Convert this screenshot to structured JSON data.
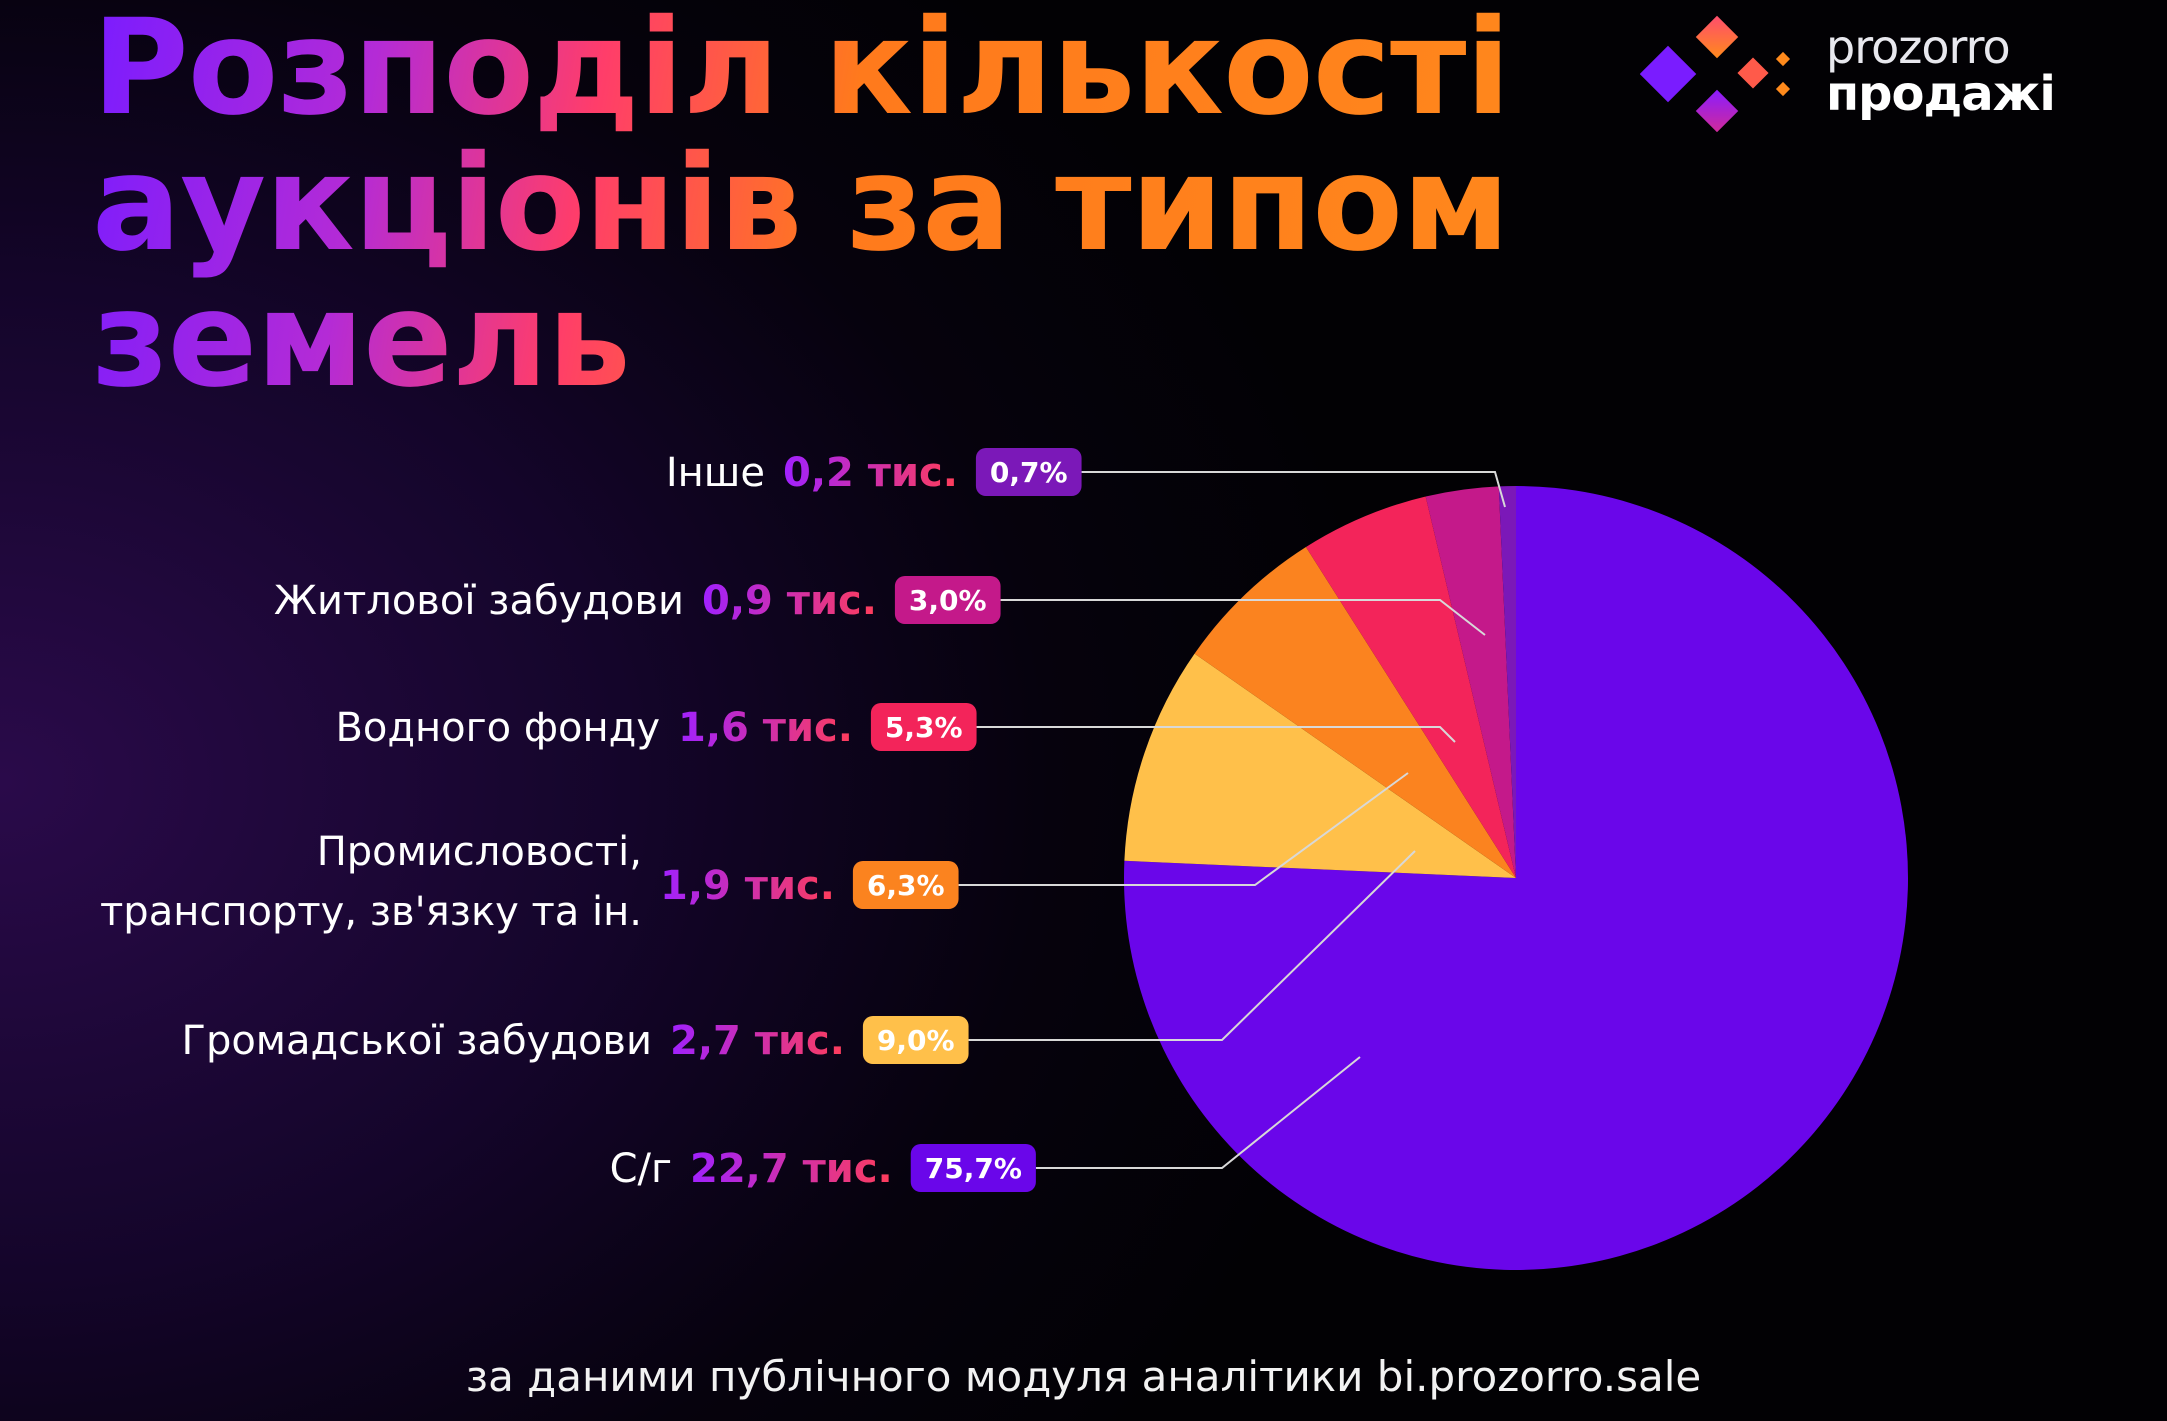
{
  "title_lines": [
    "Розподіл кількості",
    "аукціонів за типом",
    "земель"
  ],
  "logo": {
    "line1": "prozorro",
    "line2": "продажі"
  },
  "footer": "за даними публічного модуля аналітики bi.prozorro.sale",
  "colors": {
    "value_gradient_start": "#a021ff",
    "value_gradient_end": "#ff3d5a",
    "leader_line": "#d8d8d8"
  },
  "chart_data": {
    "type": "pie",
    "title": "Розподіл кількості аукціонів за типом земель",
    "slices": [
      {
        "name": "С/г",
        "value_label": "22,7 тис.",
        "value": 22.7,
        "percent": 75.7,
        "percent_label": "75,7%",
        "color": "#6a06ea",
        "badge_text_color": "#ffffff"
      },
      {
        "name": "Громадської забудови",
        "value_label": "2,7 тис.",
        "value": 2.7,
        "percent": 9.0,
        "percent_label": "9,0%",
        "color": "#ffc04a",
        "badge_text_color": "#ffffff"
      },
      {
        "name": "Промисловості, транспорту, зв'язку та ін.",
        "name_lines": [
          "Промисловості,",
          "транспорту, зв'язку та ін."
        ],
        "value_label": "1,9 тис.",
        "value": 1.9,
        "percent": 6.3,
        "percent_label": "6,3%",
        "color": "#fb831f",
        "badge_text_color": "#ffffff"
      },
      {
        "name": "Водного фонду",
        "value_label": "1,6 тис.",
        "value": 1.6,
        "percent": 5.3,
        "percent_label": "5,3%",
        "color": "#f3245a",
        "badge_text_color": "#ffffff"
      },
      {
        "name": "Житлової забудови",
        "value_label": "0,9 тис.",
        "value": 0.9,
        "percent": 3.0,
        "percent_label": "3,0%",
        "color": "#c4198a",
        "badge_text_color": "#ffffff"
      },
      {
        "name": "Інше",
        "value_label": "0,2 тис.",
        "value": 0.2,
        "percent": 0.7,
        "percent_label": "0,7%",
        "color": "#7b18b8",
        "badge_text_color": "#ffffff"
      }
    ]
  }
}
